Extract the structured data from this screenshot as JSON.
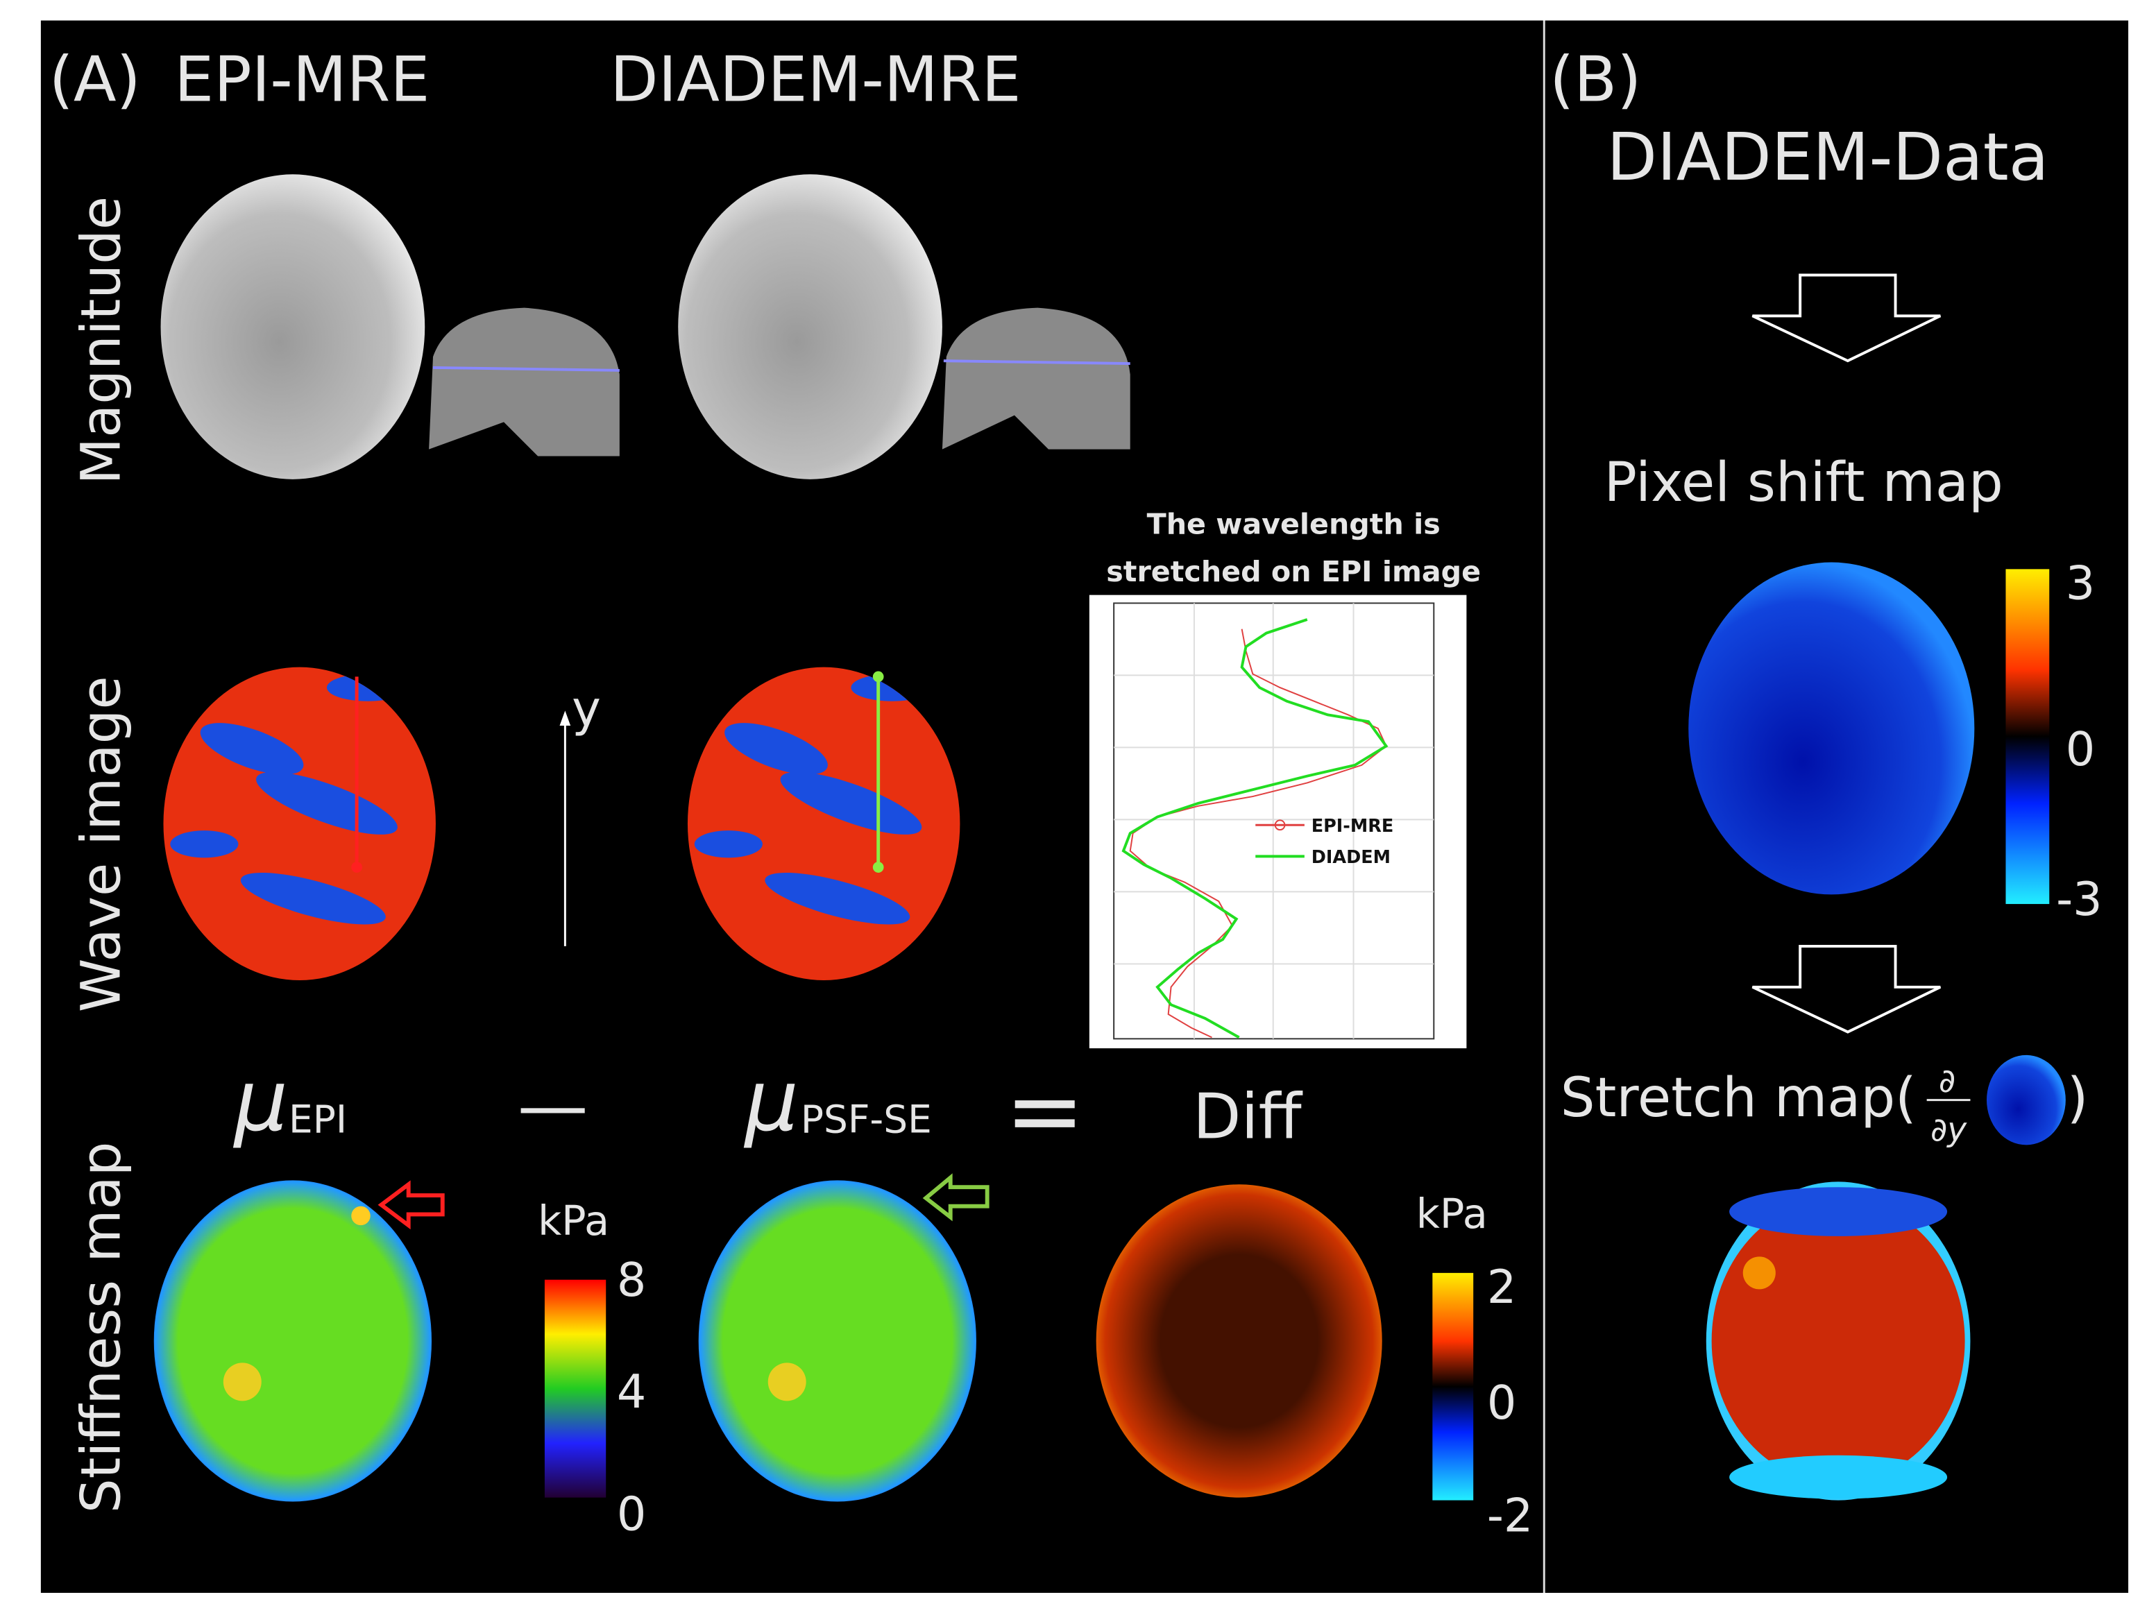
{
  "panel_a": {
    "label": "(A)",
    "columns": [
      "EPI-MRE",
      "DIADEM-MRE"
    ],
    "rows": [
      "Magnitude",
      "Wave image",
      "Stiffness map"
    ],
    "axis_label": "y",
    "profile_plot": {
      "title_lines": [
        "The wavelength is",
        "stretched on EPI image"
      ],
      "legend": [
        "EPI-MRE",
        "DIADEM"
      ]
    },
    "equation": {
      "term1": {
        "symbol": "μ",
        "subscript": "EPI"
      },
      "minus": "—",
      "term2": {
        "symbol": "μ",
        "subscript": "PSF-SE"
      },
      "equals": "=",
      "result": "Diff"
    },
    "stiffness_colorbar": {
      "unit": "kPa",
      "ticks": [
        8,
        4,
        0
      ]
    },
    "diff_colorbar": {
      "unit": "kPa",
      "ticks": [
        2,
        0,
        -2
      ]
    }
  },
  "panel_b": {
    "label": "(B)",
    "input": "DIADEM-Data",
    "step1": "Pixel shift map",
    "shift_colorbar": {
      "ticks": [
        3,
        0,
        -3
      ]
    },
    "step2": {
      "prefix": "Stretch map(",
      "numerator": "∂",
      "denominator": "∂y",
      "suffix": ")"
    }
  }
}
